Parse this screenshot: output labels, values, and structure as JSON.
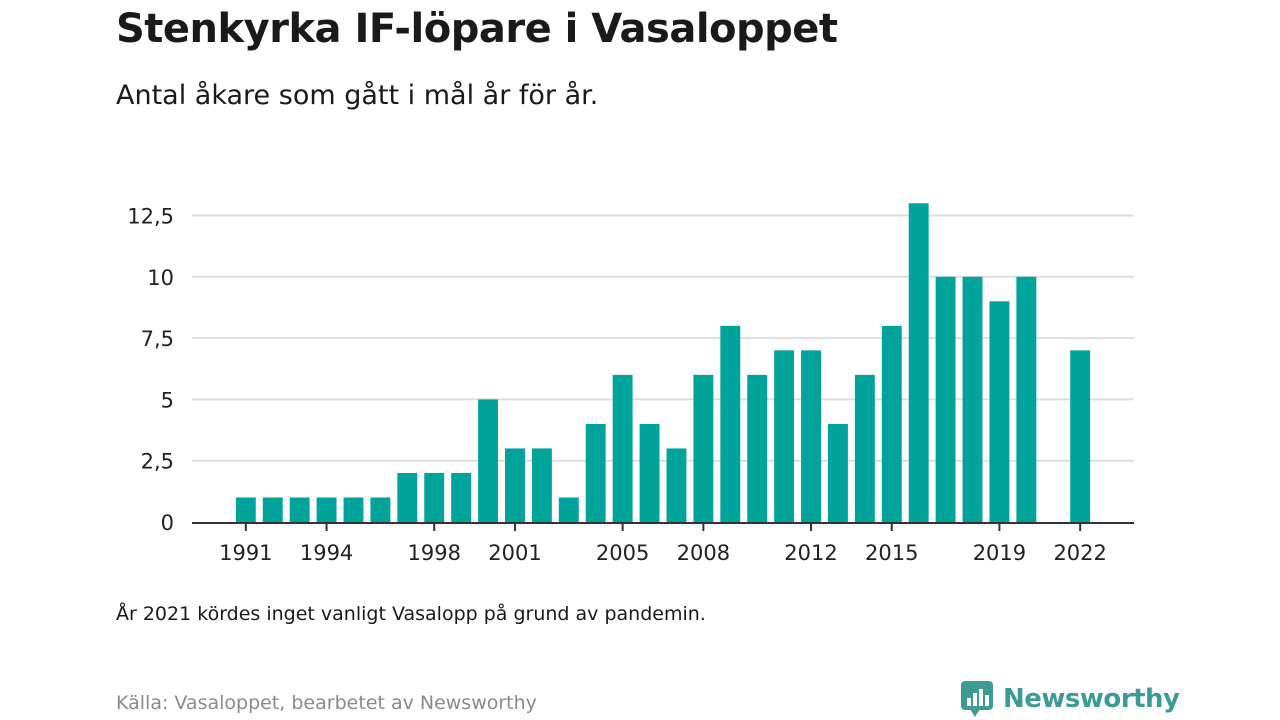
{
  "header": {
    "title": "Stenkyrka IF-löpare i Vasaloppet",
    "subtitle": "Antal åkare som gått i mål år för år."
  },
  "note": "År 2021 kördes inget vanligt Vasalopp på grund av pandemin.",
  "source": "Källa: Vasaloppet, bearbetet av Newsworthy",
  "brand": {
    "name": "Newsworthy",
    "color": "#3c9b94",
    "icon": "bar-chart-speech-bubble-icon"
  },
  "chart_data": {
    "type": "bar",
    "categories": [
      "1991",
      "1992",
      "1993",
      "1994",
      "1995",
      "1996",
      "1997",
      "1998",
      "1999",
      "2000",
      "2001",
      "2002",
      "2003",
      "2004",
      "2005",
      "2006",
      "2007",
      "2008",
      "2009",
      "2010",
      "2011",
      "2012",
      "2013",
      "2014",
      "2015",
      "2016",
      "2017",
      "2018",
      "2019",
      "2020",
      "2021",
      "2022"
    ],
    "values": [
      1,
      1,
      1,
      1,
      1,
      1,
      2,
      2,
      2,
      5,
      3,
      3,
      1,
      4,
      6,
      4,
      3,
      6,
      8,
      6,
      7,
      7,
      4,
      6,
      8,
      13,
      10,
      10,
      9,
      10,
      null,
      7
    ],
    "x_tick_labels": [
      "1991",
      "1994",
      "1998",
      "2001",
      "2005",
      "2008",
      "2012",
      "2015",
      "2019",
      "2022"
    ],
    "y_ticks": [
      0,
      2.5,
      5,
      7.5,
      10,
      12.5
    ],
    "y_tick_labels": [
      "0",
      "2,5",
      "5",
      "7,5",
      "10",
      "12,5"
    ],
    "ylim": [
      0,
      13
    ],
    "grid": true,
    "bar_color": "#00a49a",
    "grid_color": "#dddddd",
    "axis_color": "#333333"
  }
}
